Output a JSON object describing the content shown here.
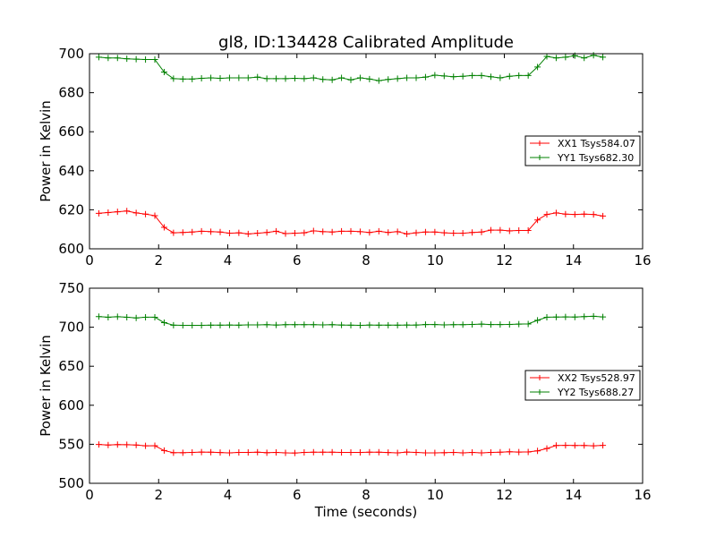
{
  "colors": {
    "XX": "#ff0000",
    "YY": "#008000",
    "axes": "#000000"
  },
  "chart_data": [
    {
      "type": "line",
      "title": "gl8, ID:134428 Calibrated Amplitude",
      "xlabel": "",
      "ylabel": "Power in Kelvin",
      "xlim": [
        0,
        16
      ],
      "ylim": [
        600,
        700
      ],
      "xticks": [
        0,
        2,
        4,
        6,
        8,
        10,
        12,
        14,
        16
      ],
      "yticks": [
        600,
        620,
        640,
        660,
        680,
        700
      ],
      "legend_position": "right",
      "x": [
        0.27,
        0.54,
        0.81,
        1.08,
        1.35,
        1.62,
        1.89,
        2.16,
        2.43,
        2.7,
        2.97,
        3.24,
        3.51,
        3.78,
        4.05,
        4.32,
        4.59,
        4.86,
        5.13,
        5.4,
        5.67,
        5.94,
        6.21,
        6.48,
        6.75,
        7.02,
        7.29,
        7.56,
        7.83,
        8.1,
        8.37,
        8.64,
        8.91,
        9.18,
        9.45,
        9.72,
        9.99,
        10.26,
        10.53,
        10.8,
        11.07,
        11.34,
        11.61,
        11.88,
        12.15,
        12.42,
        12.69,
        12.96,
        13.23,
        13.5,
        13.77,
        14.04,
        14.31,
        14.58,
        14.85
      ],
      "series": [
        {
          "name": "XX1 Tsys584.07",
          "color": "#ff0000",
          "values": [
            618.2,
            618.6,
            619.0,
            619.4,
            618.4,
            617.8,
            617.0,
            611.0,
            608.2,
            608.4,
            608.6,
            609.0,
            608.8,
            608.6,
            608.0,
            608.2,
            607.6,
            608.0,
            608.4,
            609.0,
            607.8,
            608.0,
            608.2,
            609.2,
            608.8,
            608.6,
            609.0,
            609.0,
            608.8,
            608.4,
            609.0,
            608.4,
            608.8,
            607.6,
            608.2,
            608.6,
            608.6,
            608.2,
            608.0,
            608.0,
            608.4,
            608.6,
            609.6,
            609.6,
            609.2,
            609.4,
            609.4,
            614.8,
            617.6,
            618.4,
            617.8,
            617.6,
            617.8,
            617.6,
            616.8
          ]
        },
        {
          "name": "YY1 Tsys682.30",
          "color": "#008000",
          "values": [
            698.2,
            697.8,
            697.8,
            697.4,
            697.2,
            697.0,
            697.0,
            690.6,
            687.2,
            687.0,
            687.0,
            687.4,
            687.6,
            687.4,
            687.6,
            687.6,
            687.6,
            688.0,
            687.2,
            687.2,
            687.2,
            687.4,
            687.2,
            687.6,
            686.8,
            686.6,
            687.6,
            686.6,
            687.6,
            687.0,
            686.2,
            686.8,
            687.2,
            687.6,
            687.6,
            688.0,
            689.0,
            688.6,
            688.2,
            688.4,
            688.8,
            688.8,
            688.2,
            687.6,
            688.4,
            688.8,
            688.8,
            693.2,
            698.6,
            697.8,
            698.2,
            699.0,
            697.8,
            699.2,
            698.2
          ]
        }
      ]
    },
    {
      "type": "line",
      "title": "",
      "xlabel": "Time (seconds)",
      "ylabel": "Power in Kelvin",
      "xlim": [
        0,
        16
      ],
      "ylim": [
        500,
        750
      ],
      "xticks": [
        0,
        2,
        4,
        6,
        8,
        10,
        12,
        14,
        16
      ],
      "yticks": [
        500,
        550,
        600,
        650,
        700,
        750
      ],
      "legend_position": "right",
      "x": [
        0.27,
        0.54,
        0.81,
        1.08,
        1.35,
        1.62,
        1.89,
        2.16,
        2.43,
        2.7,
        2.97,
        3.24,
        3.51,
        3.78,
        4.05,
        4.32,
        4.59,
        4.86,
        5.13,
        5.4,
        5.67,
        5.94,
        6.21,
        6.48,
        6.75,
        7.02,
        7.29,
        7.56,
        7.83,
        8.1,
        8.37,
        8.64,
        8.91,
        9.18,
        9.45,
        9.72,
        9.99,
        10.26,
        10.53,
        10.8,
        11.07,
        11.34,
        11.61,
        11.88,
        12.15,
        12.42,
        12.69,
        12.96,
        13.23,
        13.5,
        13.77,
        14.04,
        14.31,
        14.58,
        14.85
      ],
      "series": [
        {
          "name": "XX2 Tsys528.97",
          "color": "#ff0000",
          "values": [
            549.8,
            549.0,
            549.6,
            549.4,
            549.0,
            548.0,
            548.2,
            542.0,
            539.2,
            539.2,
            539.6,
            540.0,
            539.8,
            539.4,
            539.0,
            539.6,
            539.6,
            539.8,
            539.2,
            539.6,
            539.0,
            538.8,
            539.6,
            539.8,
            539.8,
            539.8,
            539.6,
            539.6,
            539.6,
            539.8,
            539.8,
            539.4,
            539.0,
            540.0,
            539.6,
            539.0,
            539.0,
            539.2,
            539.6,
            539.0,
            539.6,
            539.0,
            539.6,
            539.8,
            540.4,
            540.0,
            540.2,
            541.6,
            544.6,
            548.4,
            548.6,
            548.4,
            548.4,
            548.0,
            548.6
          ]
        },
        {
          "name": "YY2 Tsys688.27",
          "color": "#008000",
          "values": [
            713.6,
            712.8,
            713.4,
            712.8,
            711.8,
            712.8,
            712.8,
            705.8,
            702.6,
            702.4,
            702.4,
            702.4,
            702.6,
            702.6,
            702.8,
            702.6,
            703.0,
            703.0,
            703.2,
            702.8,
            703.2,
            703.2,
            703.2,
            703.2,
            703.0,
            703.2,
            702.8,
            702.6,
            702.4,
            702.8,
            702.6,
            702.6,
            702.6,
            702.8,
            702.8,
            703.4,
            703.4,
            703.0,
            703.2,
            703.2,
            703.6,
            704.0,
            703.4,
            703.4,
            703.6,
            704.0,
            704.2,
            708.8,
            712.8,
            713.0,
            713.2,
            713.0,
            713.6,
            714.0,
            713.2
          ]
        }
      ]
    }
  ]
}
